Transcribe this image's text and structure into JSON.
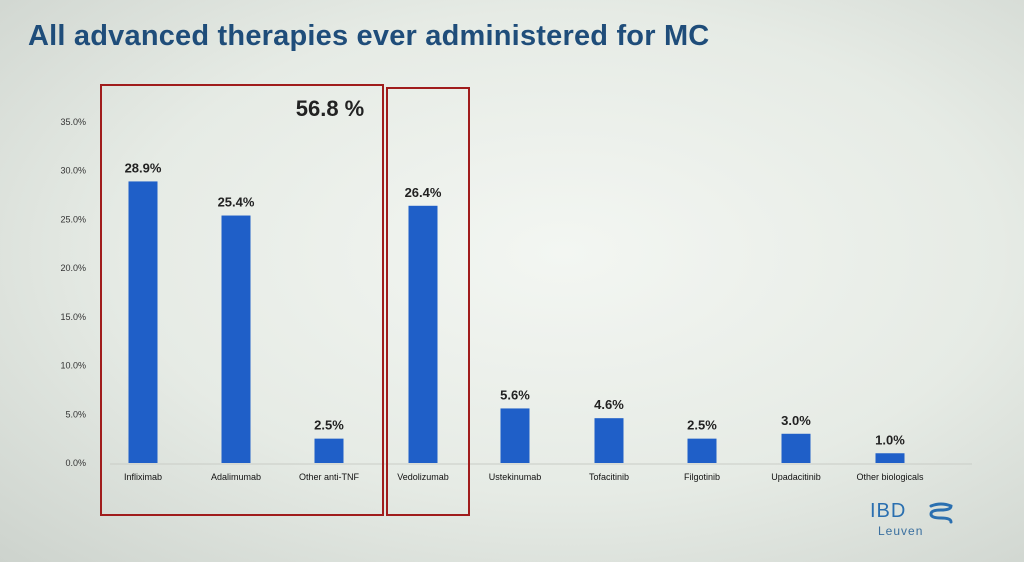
{
  "slide_title": "All advanced therapies ever administered for MC",
  "group_label": "56.8 %",
  "logo": {
    "text": "IBD",
    "subtext": "Leuven"
  },
  "chart_data": {
    "type": "bar",
    "title": "",
    "xlabel": "",
    "ylabel": "",
    "ylim": [
      0,
      35
    ],
    "yticks": [
      0,
      5,
      10,
      15,
      20,
      25,
      30,
      35
    ],
    "ytick_labels": [
      "0.0%",
      "5.0%",
      "10.0%",
      "15.0%",
      "20.0%",
      "25.0%",
      "30.0%",
      "35.0%"
    ],
    "categories": [
      "Infliximab",
      "Adalimumab",
      "Other anti-TNF",
      "Vedolizumab",
      "Ustekinumab",
      "Tofacitinib",
      "Filgotinib",
      "Upadacitinib",
      "Other biologicals"
    ],
    "values": [
      28.9,
      25.4,
      2.5,
      26.4,
      5.6,
      4.6,
      2.5,
      3.0,
      1.0
    ],
    "data_labels": [
      "28.9%",
      "25.4%",
      "2.5%",
      "26.4%",
      "5.6%",
      "4.6%",
      "2.5%",
      "3.0%",
      "1.0%"
    ],
    "bar_color": "#1f5fc8",
    "highlight_box_color": "#a01c1c",
    "grid": false
  }
}
